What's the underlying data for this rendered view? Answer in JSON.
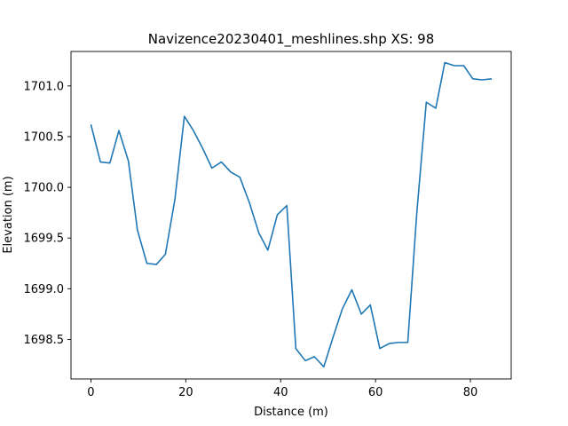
{
  "chart_data": {
    "type": "line",
    "title": "Navizence20230401_meshlines.shp XS: 98",
    "xlabel": "Distance (m)",
    "ylabel": "Elevation (m)",
    "xlim": [
      -4.2,
      88.6
    ],
    "ylim": [
      1698.11,
      1701.34
    ],
    "xticks": [
      0,
      20,
      40,
      60,
      80
    ],
    "xtick_labels": [
      "0",
      "20",
      "40",
      "60",
      "80"
    ],
    "yticks": [
      1698.5,
      1699.0,
      1699.5,
      1700.0,
      1700.5,
      1701.0
    ],
    "ytick_labels": [
      "1698.5",
      "1699.0",
      "1699.5",
      "1700.0",
      "1700.5",
      "1701.0"
    ],
    "grid": false,
    "legend": "none",
    "series": [
      {
        "color": "#1f77b4",
        "x": [
          0.0,
          2.0,
          4.0,
          5.9,
          7.9,
          9.8,
          11.8,
          13.8,
          15.7,
          17.7,
          19.7,
          21.6,
          23.6,
          25.5,
          27.5,
          29.5,
          31.4,
          33.4,
          35.4,
          37.3,
          39.3,
          41.3,
          43.2,
          45.2,
          47.1,
          49.1,
          51.1,
          53.0,
          55.0,
          57.0,
          58.9,
          60.9,
          62.9,
          64.8,
          66.8,
          68.7,
          70.7,
          72.7,
          74.6,
          76.6,
          78.6,
          80.5,
          82.5,
          84.5
        ],
        "y": [
          1700.62,
          1700.25,
          1700.24,
          1700.56,
          1700.26,
          1699.58,
          1699.25,
          1699.24,
          1699.34,
          1699.88,
          1700.7,
          1700.56,
          1700.38,
          1700.19,
          1700.25,
          1700.15,
          1700.1,
          1699.85,
          1699.55,
          1699.38,
          1699.73,
          1699.82,
          1698.41,
          1698.29,
          1698.33,
          1698.23,
          1698.53,
          1698.8,
          1698.99,
          1698.75,
          1698.84,
          1698.41,
          1698.46,
          1698.47,
          1698.47,
          1699.75,
          1700.84,
          1700.78,
          1701.23,
          1701.2,
          1701.2,
          1701.07,
          1701.06,
          1701.07
        ]
      }
    ]
  }
}
